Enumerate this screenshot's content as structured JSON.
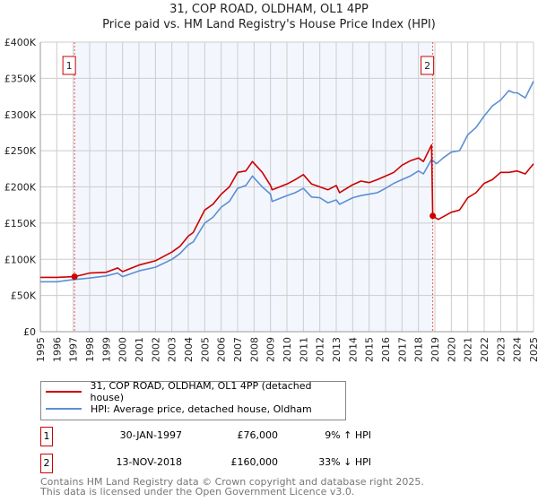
{
  "chart_data": {
    "type": "line",
    "title": "31, COP ROAD, OLDHAM, OL1 4PP",
    "subtitle": "Price paid vs. HM Land Registry's House Price Index (HPI)",
    "xlabel": "",
    "ylabel": "",
    "xlim": [
      1995,
      2025
    ],
    "ylim": [
      0,
      400000
    ],
    "y_ticks": [
      "£0",
      "£50K",
      "£100K",
      "£150K",
      "£200K",
      "£250K",
      "£300K",
      "£350K",
      "£400K"
    ],
    "x_ticks": [
      "1995",
      "1996",
      "1997",
      "1998",
      "1999",
      "2000",
      "2001",
      "2002",
      "2003",
      "2004",
      "2005",
      "2006",
      "2007",
      "2008",
      "2009",
      "2010",
      "2011",
      "2012",
      "2013",
      "2014",
      "2015",
      "2016",
      "2017",
      "2018",
      "2019",
      "2020",
      "2021",
      "2022",
      "2023",
      "2024",
      "2025"
    ],
    "grid": true,
    "series": [
      {
        "name": "31, COP ROAD, OLDHAM, OL1 4PP (detached house)",
        "color": "#cc0000",
        "x": [
          1995,
          1996,
          1997.08,
          1998,
          1999,
          1999.7,
          2000,
          2001,
          2002,
          2003,
          2003.5,
          2004,
          2004.3,
          2005,
          2005.5,
          2006,
          2006.5,
          2007,
          2007.5,
          2007.9,
          2008.5,
          2009,
          2009.1,
          2010,
          2010.5,
          2011,
          2011.5,
          2012,
          2012.5,
          2013,
          2013.2,
          2014,
          2014.5,
          2015,
          2015.5,
          2016,
          2016.5,
          2017,
          2017.5,
          2018,
          2018.3,
          2018.8,
          2018.87,
          2019.2,
          2020,
          2020.5,
          2021,
          2021.5,
          2022,
          2022.5,
          2023,
          2023.5,
          2024,
          2024.5,
          2025
        ],
        "y": [
          75000,
          75000,
          76000,
          81000,
          82000,
          88000,
          83000,
          92000,
          98000,
          110000,
          118000,
          132000,
          137000,
          168000,
          176000,
          190000,
          200000,
          220000,
          222000,
          235000,
          220000,
          202000,
          196000,
          204000,
          210000,
          217000,
          204000,
          200000,
          196000,
          202000,
          192000,
          203000,
          208000,
          206000,
          210000,
          215000,
          220000,
          230000,
          236000,
          240000,
          235000,
          258000,
          160000,
          155000,
          165000,
          168000,
          185000,
          192000,
          205000,
          210000,
          220000,
          220000,
          222000,
          218000,
          232000
        ]
      },
      {
        "name": "HPI: Average price, detached house, Oldham",
        "color": "#5b8fd4",
        "x": [
          1995,
          1996,
          1997,
          1998,
          1999,
          1999.7,
          2000,
          2001,
          2002,
          2003,
          2003.5,
          2004,
          2004.3,
          2005,
          2005.5,
          2006,
          2006.5,
          2007,
          2007.5,
          2007.9,
          2008.5,
          2009,
          2009.1,
          2010,
          2010.5,
          2011,
          2011.5,
          2012,
          2012.5,
          2013,
          2013.2,
          2014,
          2014.5,
          2015,
          2015.5,
          2016,
          2016.5,
          2017,
          2017.5,
          2018,
          2018.3,
          2018.8,
          2019.1,
          2019.5,
          2020,
          2020.5,
          2021,
          2021.5,
          2022,
          2022.5,
          2023,
          2023.5,
          2023.8,
          2024,
          2024.5,
          2025
        ],
        "y": [
          69000,
          69000,
          72000,
          74000,
          77000,
          81000,
          76000,
          84000,
          89000,
          100000,
          108000,
          120000,
          124000,
          150000,
          158000,
          172000,
          180000,
          198000,
          202000,
          215000,
          200000,
          190000,
          180000,
          188000,
          192000,
          198000,
          186000,
          185000,
          178000,
          182000,
          176000,
          185000,
          188000,
          190000,
          192000,
          198000,
          205000,
          210000,
          215000,
          222000,
          218000,
          238000,
          232000,
          240000,
          248000,
          250000,
          272000,
          282000,
          298000,
          312000,
          320000,
          333000,
          330000,
          330000,
          323000,
          346000
        ]
      }
    ],
    "annotations": [
      {
        "label": "1",
        "x": 1997.08,
        "y": 76000
      },
      {
        "label": "2",
        "x": 2018.87,
        "y": 160000
      }
    ]
  },
  "legend": {
    "items": [
      "31, COP ROAD, OLDHAM, OL1 4PP (detached house)",
      "HPI: Average price, detached house, Oldham"
    ]
  },
  "sales": [
    {
      "num": "1",
      "date": "30-JAN-1997",
      "price": "£76,000",
      "hpi": "9% ↑ HPI"
    },
    {
      "num": "2",
      "date": "13-NOV-2018",
      "price": "£160,000",
      "hpi": "33% ↓ HPI"
    }
  ],
  "footer": {
    "line1": "Contains HM Land Registry data © Crown copyright and database right 2025.",
    "line2": "This data is licensed under the Open Government Licence v3.0."
  }
}
